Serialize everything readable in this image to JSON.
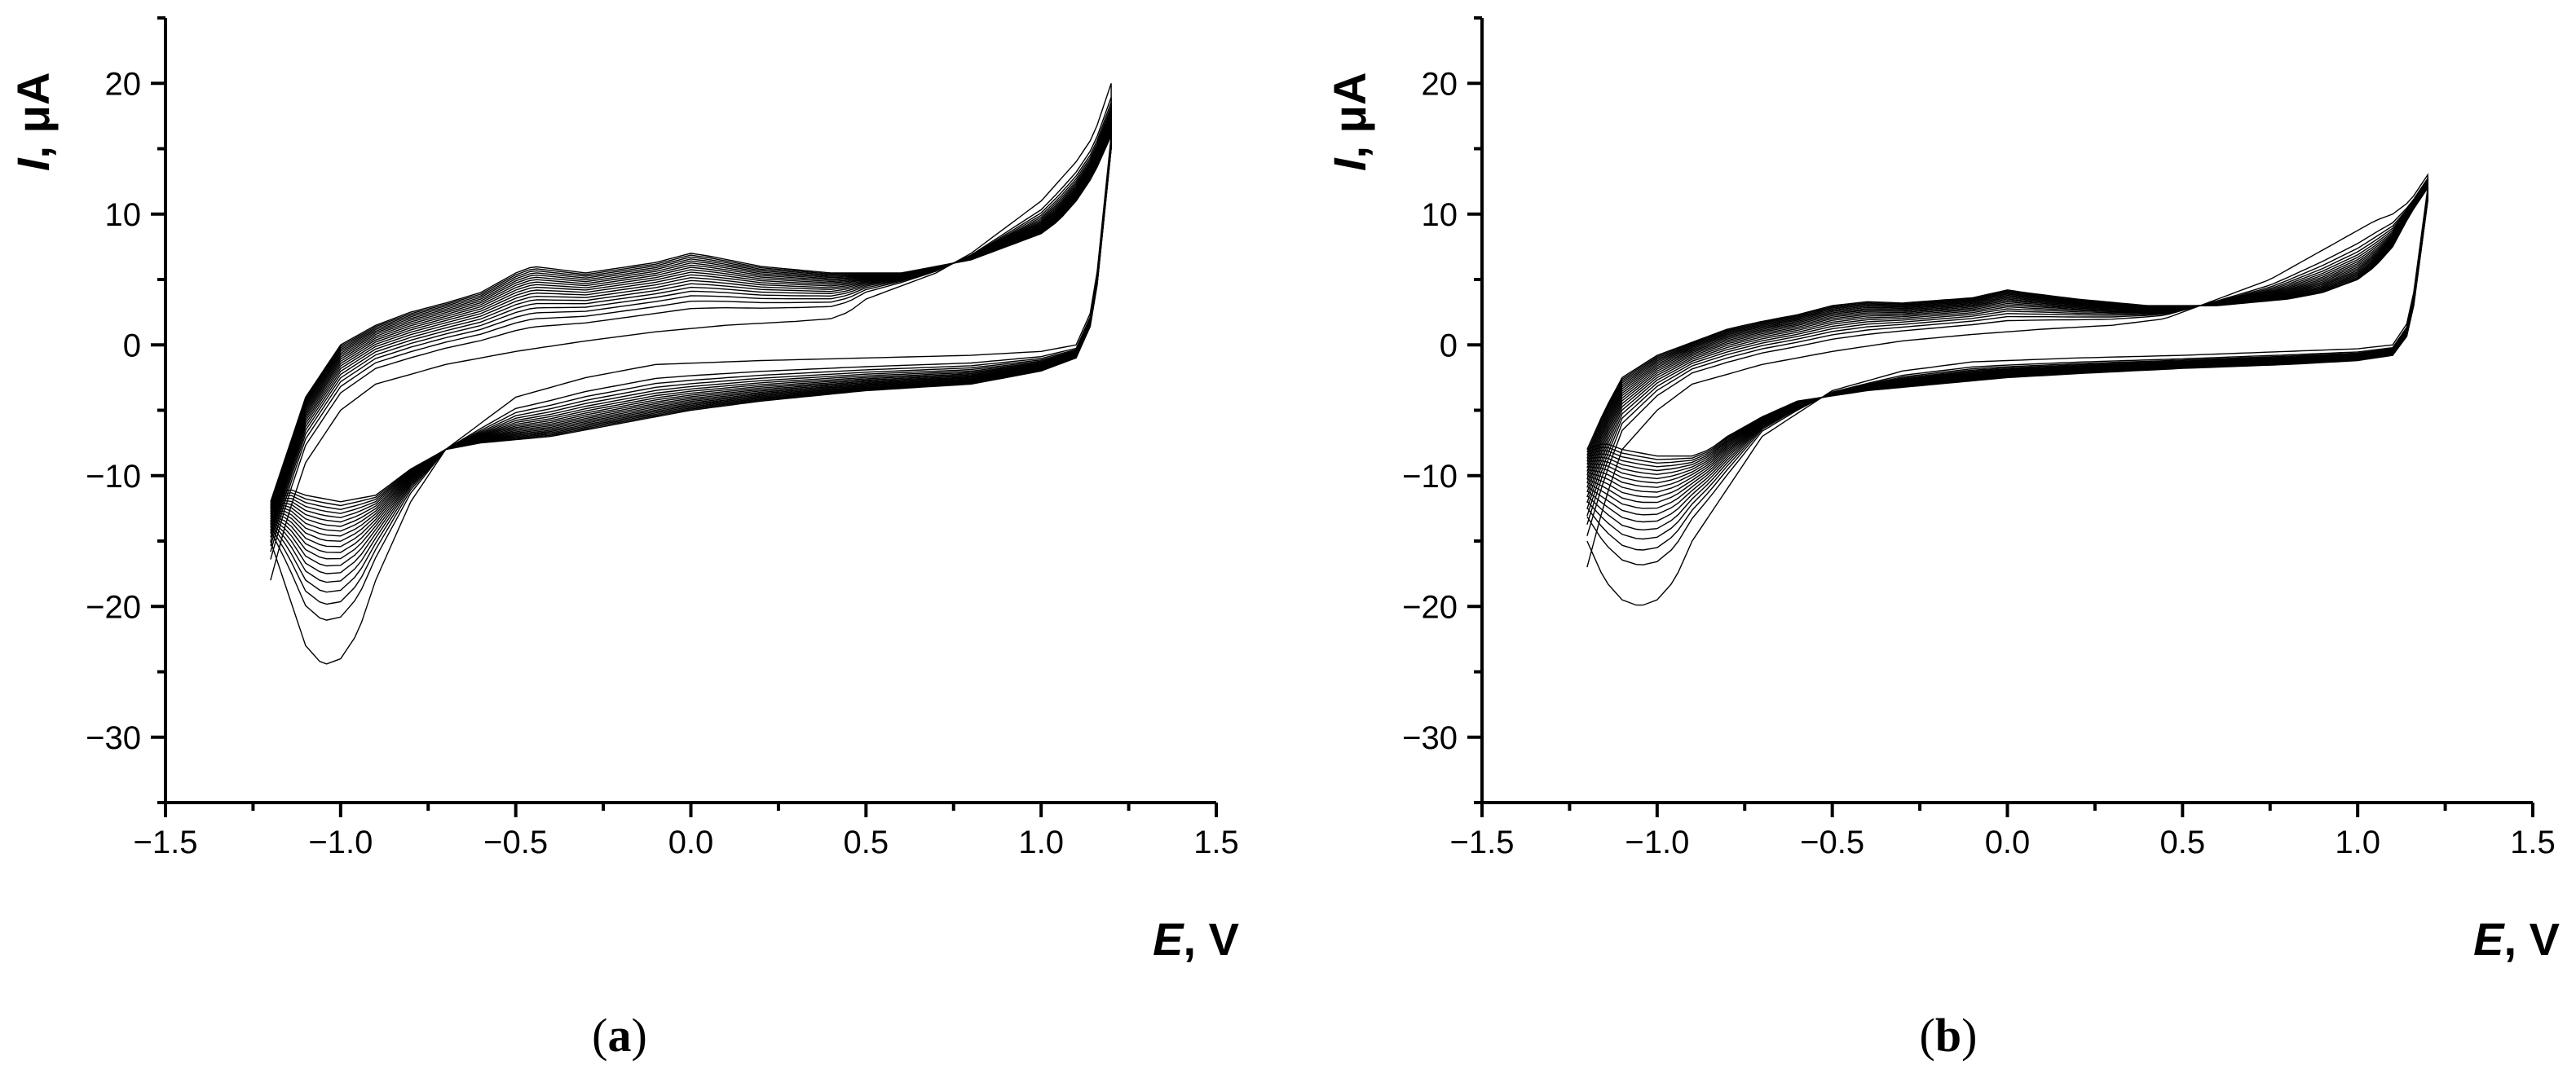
{
  "chart_data": [
    {
      "type": "line",
      "panel": "a",
      "caption": {
        "open": "(",
        "letter": "a",
        "close": ")"
      },
      "xlabel": {
        "symbol": "E",
        "unit": ", V"
      },
      "ylabel": {
        "symbol": "I",
        "unit": ", μA"
      },
      "xlim": [
        -1.5,
        1.5
      ],
      "ylim": [
        -35,
        25
      ],
      "xticks": [
        -1.5,
        -1.0,
        -0.5,
        0.0,
        0.5,
        1.0,
        1.5
      ],
      "xtick_labels": [
        "−1.5",
        "−1.0",
        "−0.5",
        "0.0",
        "0.5",
        "1.0",
        "1.5"
      ],
      "yticks": [
        -30,
        -20,
        -10,
        0,
        10,
        20
      ],
      "ytick_labels": [
        "−30",
        "−20",
        "−10",
        "0",
        "10",
        "20"
      ],
      "grid": false,
      "legend": "none",
      "scan_range": [
        -1.2,
        1.2
      ],
      "anodic_first": {
        "E": [
          -1.2,
          -1.15,
          -1.1,
          -1.0,
          -0.9,
          -0.7,
          -0.5,
          -0.3,
          -0.1,
          0.1,
          0.3,
          0.4,
          0.45,
          0.5,
          0.6,
          0.7,
          0.8,
          0.9,
          1.0,
          1.05,
          1.1,
          1.15,
          1.2
        ],
        "I": [
          -18,
          -13,
          -9,
          -5,
          -3,
          -1.5,
          -0.5,
          0.3,
          1,
          1.5,
          1.8,
          2,
          2.5,
          3.5,
          4.5,
          5.5,
          7,
          9,
          11,
          12.5,
          14,
          16,
          20
        ]
      },
      "anodic_last": {
        "E": [
          -1.2,
          -1.15,
          -1.1,
          -1.0,
          -0.9,
          -0.8,
          -0.7,
          -0.6,
          -0.5,
          -0.45,
          -0.3,
          -0.1,
          0.0,
          0.05,
          0.2,
          0.4,
          0.6,
          0.8,
          0.9,
          1.0,
          1.05,
          1.1,
          1.15,
          1.2
        ],
        "I": [
          -12,
          -8,
          -4,
          0,
          1.5,
          2.5,
          3.2,
          4,
          5.5,
          6,
          5.5,
          6.3,
          7,
          6.8,
          6,
          5.5,
          5.5,
          6.5,
          7.5,
          8.5,
          9.5,
          11,
          13,
          16
        ]
      },
      "cathodic_first": {
        "E": [
          1.2,
          1.15,
          1.1,
          1.0,
          0.8,
          0.5,
          0.2,
          -0.1,
          -0.3,
          -0.5,
          -0.7,
          -0.8,
          -0.9,
          -0.95,
          -1.0,
          -1.05,
          -1.1,
          -1.15,
          -1.2
        ],
        "I": [
          16,
          3,
          0,
          -0.5,
          -0.8,
          -1,
          -1.2,
          -1.5,
          -2.5,
          -4,
          -8,
          -12,
          -18,
          -22,
          -24,
          -24.5,
          -23,
          -19,
          -15
        ]
      },
      "cathodic_last": {
        "E": [
          1.2,
          1.15,
          1.1,
          1.0,
          0.8,
          0.5,
          0.2,
          0.0,
          -0.2,
          -0.4,
          -0.6,
          -0.7,
          -0.8,
          -0.9,
          -1.0,
          -1.1,
          -1.15,
          -1.2
        ],
        "I": [
          15,
          2,
          -1,
          -2,
          -3,
          -3.5,
          -4.3,
          -5,
          -6,
          -7,
          -7.5,
          -8,
          -9.5,
          -11.5,
          -12,
          -11.5,
          -11,
          -12
        ]
      },
      "n_cycles": 20
    },
    {
      "type": "line",
      "panel": "b",
      "caption": {
        "open": "(",
        "letter": "b",
        "close": ")"
      },
      "xlabel": {
        "symbol": "E",
        "unit": ", V"
      },
      "ylabel": {
        "symbol": "I",
        "unit": ", μA"
      },
      "xlim": [
        -1.5,
        1.5
      ],
      "ylim": [
        -35,
        25
      ],
      "xticks": [
        -1.5,
        -1.0,
        -0.5,
        0.0,
        0.5,
        1.0,
        1.5
      ],
      "xtick_labels": [
        "−1.5",
        "−1.0",
        "−0.5",
        "0.0",
        "0.5",
        "1.0",
        "1.5"
      ],
      "yticks": [
        -30,
        -20,
        -10,
        0,
        10,
        20
      ],
      "ytick_labels": [
        "−30",
        "−20",
        "−10",
        "0",
        "10",
        "20"
      ],
      "grid": false,
      "legend": "none",
      "scan_range": [
        -1.2,
        1.2
      ],
      "anodic_first": {
        "E": [
          -1.2,
          -1.15,
          -1.1,
          -1.0,
          -0.9,
          -0.7,
          -0.5,
          -0.3,
          -0.1,
          0.1,
          0.3,
          0.45,
          0.55,
          0.65,
          0.75,
          0.85,
          0.95,
          1.05,
          1.1,
          1.15,
          1.2
        ],
        "I": [
          -17,
          -12,
          -8,
          -5,
          -3,
          -1.5,
          -0.5,
          0.3,
          0.8,
          1.2,
          1.5,
          2,
          3,
          4,
          5,
          6.5,
          8,
          9.5,
          10,
          11,
          13
        ]
      },
      "anodic_last": {
        "E": [
          -1.2,
          -1.15,
          -1.1,
          -1.0,
          -0.9,
          -0.8,
          -0.7,
          -0.6,
          -0.5,
          -0.4,
          -0.3,
          -0.1,
          0.0,
          0.05,
          0.2,
          0.4,
          0.6,
          0.8,
          0.9,
          1.0,
          1.05,
          1.1,
          1.15,
          1.2
        ],
        "I": [
          -8,
          -5,
          -2.5,
          -0.8,
          0.2,
          1.2,
          1.8,
          2.3,
          3,
          3.3,
          3.2,
          3.6,
          4.2,
          4,
          3.5,
          3,
          3,
          3.5,
          4,
          5,
          6,
          7.5,
          10,
          12
        ]
      },
      "cathodic_first": {
        "E": [
          1.2,
          1.15,
          1.1,
          1.0,
          0.8,
          0.5,
          0.2,
          -0.1,
          -0.3,
          -0.5,
          -0.7,
          -0.8,
          -0.9,
          -0.95,
          -1.0,
          -1.05,
          -1.1,
          -1.15,
          -1.2
        ],
        "I": [
          12,
          2,
          0,
          -0.3,
          -0.5,
          -0.8,
          -1,
          -1.3,
          -2,
          -3.5,
          -7,
          -11,
          -15,
          -18,
          -19.5,
          -20,
          -19.5,
          -18,
          -15
        ]
      },
      "cathodic_last": {
        "E": [
          1.2,
          1.15,
          1.1,
          1.0,
          0.8,
          0.5,
          0.2,
          0.0,
          -0.2,
          -0.4,
          -0.6,
          -0.7,
          -0.8,
          -0.85,
          -0.9,
          -1.0,
          -1.1,
          -1.15,
          -1.2
        ],
        "I": [
          11,
          1,
          -0.8,
          -1.2,
          -1.5,
          -1.8,
          -2.2,
          -2.5,
          -3,
          -3.5,
          -4.3,
          -5.5,
          -7,
          -8,
          -8.5,
          -8.5,
          -8,
          -7.5,
          -8
        ]
      },
      "n_cycles": 20
    }
  ]
}
